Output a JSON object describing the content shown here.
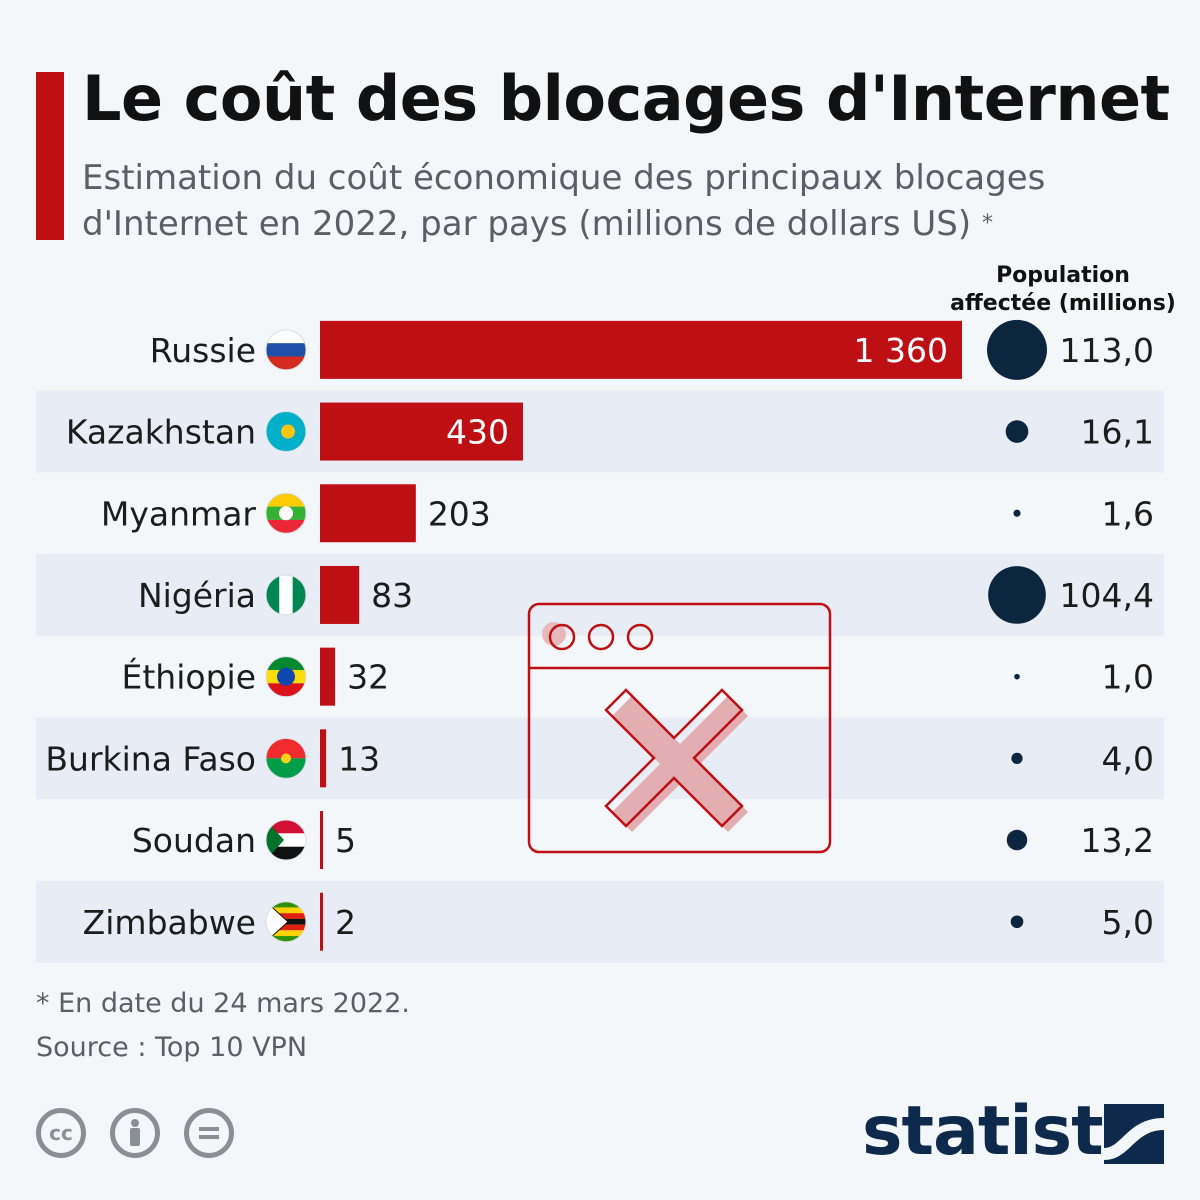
{
  "header": {
    "title": "Le coût des blocages d'Internet",
    "subtitle": "Estimation du coût économique des principaux blocages d'Internet en 2022, par pays (millions de dollars US)",
    "subtitle_marker": "*"
  },
  "population_header": "Population affectée (millions)",
  "footer": {
    "footnote": "* En date du 24 mars 2022.",
    "source": "Source : Top 10 VPN",
    "brand": "statista"
  },
  "colors": {
    "bar": "#be0f14",
    "bubble": "#0d2640",
    "row_alt": "#e8edf5",
    "background": "#f4f7fa"
  },
  "icons": [
    "creative-commons-icon",
    "attribution-icon",
    "no-derivatives-icon",
    "browser-blocked-icon",
    "statista-logo-icon"
  ],
  "chart_data": {
    "type": "bar",
    "orientation": "horizontal",
    "categories": [
      "Russie",
      "Kazakhstan",
      "Myanmar",
      "Nigéria",
      "Éthiopie",
      "Burkina Faso",
      "Soudan",
      "Zimbabwe"
    ],
    "value_labels": [
      "1 360",
      "430",
      "203",
      "83",
      "32",
      "13",
      "5",
      "2"
    ],
    "series": [
      {
        "values": [
          1360,
          430,
          203,
          83,
          32,
          13,
          5,
          2
        ]
      },
      {
        "name": "Population affectée (millions)",
        "values": [
          113.0,
          16.1,
          1.6,
          104.4,
          1.0,
          4.0,
          13.2,
          5.0
        ],
        "labels": [
          "113,0",
          "16,1",
          "1,6",
          "104,4",
          "1,0",
          "4,0",
          "13,2",
          "5,0"
        ]
      }
    ],
    "flags": [
      "russia-flag-icon",
      "kazakhstan-flag-icon",
      "myanmar-flag-icon",
      "nigeria-flag-icon",
      "ethiopia-flag-icon",
      "burkina-faso-flag-icon",
      "sudan-flag-icon",
      "zimbabwe-flag-icon"
    ]
  }
}
